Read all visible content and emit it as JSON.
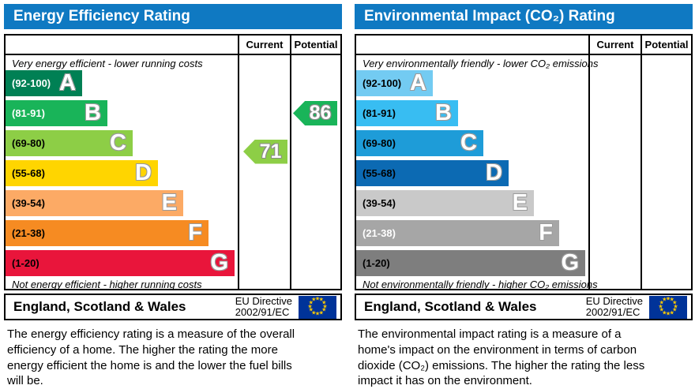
{
  "colors": {
    "header_bg": "#0f79c2",
    "border": "#000000",
    "eu_flag_bg": "#003399",
    "eu_star": "#ffcc00",
    "current_arrow": "#8dce46",
    "potential_arrow": "#19b459"
  },
  "panels": [
    {
      "title": "Energy Efficiency Rating",
      "col_current": "Current",
      "col_potential": "Potential",
      "top_note": "Very energy efficient - lower running costs",
      "bottom_note": "Not energy efficient - higher running costs",
      "bands": [
        {
          "letter": "A",
          "range": "(92-100)",
          "color": "#008054",
          "label_color": "#ffffff"
        },
        {
          "letter": "B",
          "range": "(81-91)",
          "color": "#19b459",
          "label_color": "#ffffff"
        },
        {
          "letter": "C",
          "range": "(69-80)",
          "color": "#8dce46",
          "label_color": "#000000"
        },
        {
          "letter": "D",
          "range": "(55-68)",
          "color": "#ffd500",
          "label_color": "#000000"
        },
        {
          "letter": "E",
          "range": "(39-54)",
          "color": "#fcaa65",
          "label_color": "#000000"
        },
        {
          "letter": "F",
          "range": "(21-38)",
          "color": "#f68b22",
          "label_color": "#000000"
        },
        {
          "letter": "G",
          "range": "(1-20)",
          "color": "#e9153b",
          "label_color": "#000000"
        }
      ],
      "arrows": [
        {
          "value": "86",
          "column": "potential",
          "color": "#19b459"
        },
        {
          "value": "71",
          "column": "current",
          "color": "#8dce46"
        }
      ],
      "footer_region": "England, Scotland & Wales",
      "footer_directive": [
        "EU Directive",
        "2002/91/EC"
      ],
      "description": "The energy efficiency rating is a measure of the overall efficiency of a home. The higher the rating the more energy efficient the home is and the lower the fuel bills will be."
    },
    {
      "title": "Environmental Impact (CO₂) Rating",
      "col_current": "Current",
      "col_potential": "Potential",
      "top_note": "Very environmentally friendly - lower CO₂ emissions",
      "bottom_note": "Not environmentally friendly - higher CO₂ emissions",
      "bands": [
        {
          "letter": "A",
          "range": "(92-100)",
          "color": "#73cbf2",
          "label_color": "#000000"
        },
        {
          "letter": "B",
          "range": "(81-91)",
          "color": "#38bdf2",
          "label_color": "#000000"
        },
        {
          "letter": "C",
          "range": "(69-80)",
          "color": "#1e9cd8",
          "label_color": "#000000"
        },
        {
          "letter": "D",
          "range": "(55-68)",
          "color": "#0c6ab3",
          "label_color": "#000000"
        },
        {
          "letter": "E",
          "range": "(39-54)",
          "color": "#c9c9c9",
          "label_color": "#000000"
        },
        {
          "letter": "F",
          "range": "(21-38)",
          "color": "#a6a6a6",
          "label_color": "#ffffff"
        },
        {
          "letter": "G",
          "range": "(1-20)",
          "color": "#7e7e7e",
          "label_color": "#000000"
        }
      ],
      "arrows": [],
      "footer_region": "England, Scotland & Wales",
      "footer_directive": [
        "EU Directive",
        "2002/91/EC"
      ],
      "description": "The environmental impact rating is a measure of a home's impact on the environment in terms of carbon dioxide (CO₂) emissions. The higher the rating the less impact it has on the environment."
    }
  ],
  "chart_data": [
    {
      "type": "bar",
      "title": "Energy Efficiency Rating",
      "categories": [
        "A (92-100)",
        "B (81-91)",
        "C (69-80)",
        "D (55-68)",
        "E (39-54)",
        "F (21-38)",
        "G (1-20)"
      ],
      "band_colors": [
        "#008054",
        "#19b459",
        "#8dce46",
        "#ffd500",
        "#fcaa65",
        "#f68b22",
        "#e9153b"
      ],
      "current_rating": 71,
      "current_band": "C",
      "potential_rating": 86,
      "potential_band": "B",
      "top_annotation": "Very energy efficient - lower running costs",
      "bottom_annotation": "Not energy efficient - higher running costs",
      "region": "England, Scotland & Wales",
      "directive": "EU Directive 2002/91/EC"
    },
    {
      "type": "bar",
      "title": "Environmental Impact (CO₂) Rating",
      "categories": [
        "A (92-100)",
        "B (81-91)",
        "C (69-80)",
        "D (55-68)",
        "E (39-54)",
        "F (21-38)",
        "G (1-20)"
      ],
      "band_colors": [
        "#73cbf2",
        "#38bdf2",
        "#1e9cd8",
        "#0c6ab3",
        "#c9c9c9",
        "#a6a6a6",
        "#7e7e7e"
      ],
      "current_rating": null,
      "potential_rating": null,
      "top_annotation": "Very environmentally friendly - lower CO₂ emissions",
      "bottom_annotation": "Not environmentally friendly - higher CO₂ emissions",
      "region": "England, Scotland & Wales",
      "directive": "EU Directive 2002/91/EC"
    }
  ]
}
